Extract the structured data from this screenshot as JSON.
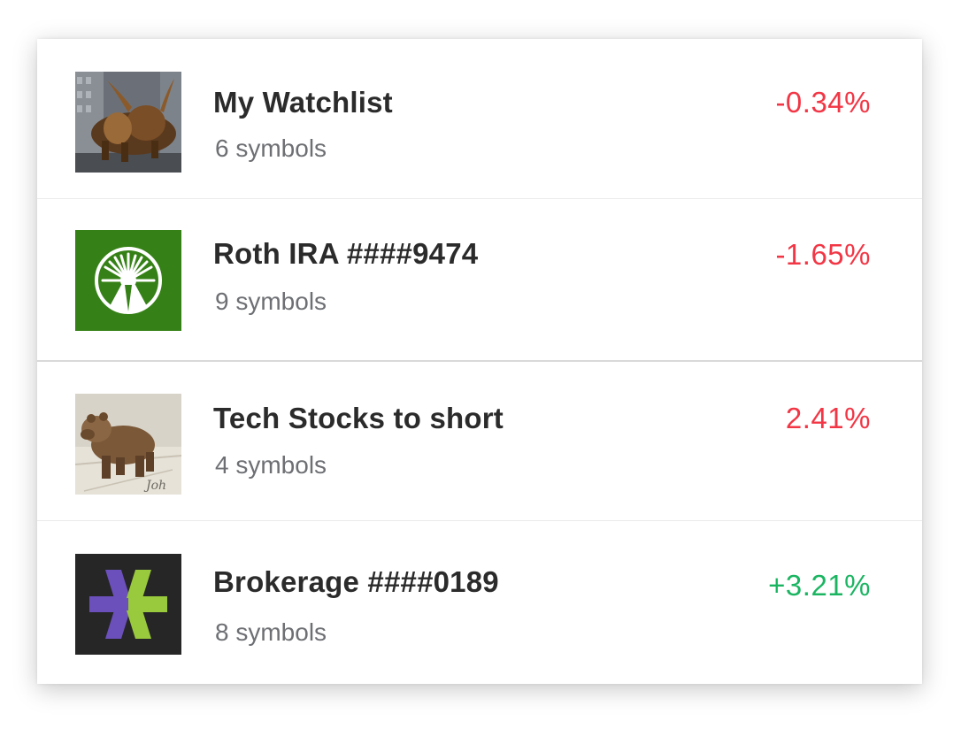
{
  "watchlists": [
    {
      "name": "My Watchlist",
      "symbols": "6 symbols",
      "change": "-0.34%",
      "change_color": "#f23645",
      "image": "charging-bull-photo"
    },
    {
      "name": "Roth IRA ####9474",
      "symbols": "9 symbols",
      "change": "-1.65%",
      "change_color": "#f23645",
      "image": "fidelity-logo"
    },
    {
      "name": "Tech Stocks to short",
      "symbols": "4 symbols",
      "change": "2.41%",
      "change_color": "#f23645",
      "image": "bear-statue-photo"
    },
    {
      "name": "Brokerage ####0189",
      "symbols": "8 symbols",
      "change": "+3.21%",
      "change_color": "#1bb562",
      "image": "etrade-logo"
    }
  ]
}
